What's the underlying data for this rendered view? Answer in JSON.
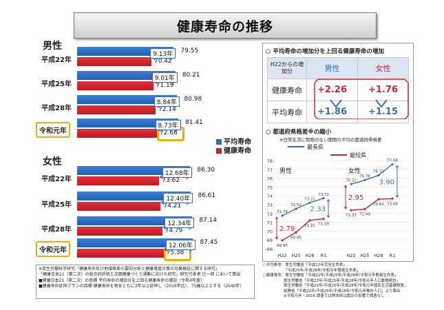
{
  "title": "健康寿命の推移",
  "left": {
    "male_label": "男性",
    "female_label": "女性",
    "years": [
      "平成22年",
      "平成25年",
      "平成28年",
      "令和元年"
    ],
    "legend": {
      "blue": "平均寿命",
      "red": "健康寿命"
    }
  },
  "chart_data": [
    {
      "type": "bar",
      "group": "男性",
      "categories": [
        "平成22年",
        "平成25年",
        "平成28年",
        "令和元年"
      ],
      "series": [
        {
          "name": "平均寿命",
          "values": [
            79.55,
            80.21,
            80.98,
            81.41
          ]
        },
        {
          "name": "健康寿命",
          "values": [
            70.42,
            71.19,
            72.14,
            72.68
          ]
        }
      ],
      "differences": [
        "9.13年",
        "9.01年",
        "8.84年",
        "8.73年"
      ],
      "labels_life": [
        "79.55",
        "80.21",
        "80.98",
        "81.41"
      ],
      "labels_health": [
        "70.42",
        "71.19",
        "72.14",
        "72.68"
      ]
    },
    {
      "type": "bar",
      "group": "女性",
      "categories": [
        "平成22年",
        "平成25年",
        "平成28年",
        "令和元年"
      ],
      "series": [
        {
          "name": "平均寿命",
          "values": [
            86.3,
            86.61,
            87.14,
            87.45
          ]
        },
        {
          "name": "健康寿命",
          "values": [
            73.62,
            74.21,
            74.79,
            75.38
          ]
        }
      ],
      "differences": [
        "12.68年",
        "12.40年",
        "12.34年",
        "12.06年"
      ],
      "labels_life": [
        "86.30",
        "86.61",
        "87.14",
        "87.45"
      ],
      "labels_health": [
        "73.62",
        "74.21",
        "74.79",
        "75.38"
      ]
    },
    {
      "type": "table",
      "title": "○ 平均寿命の増加分を上回る健康寿命の増加",
      "corner": "H22からの増加分",
      "columns": [
        "男性",
        "女性"
      ],
      "rows": [
        {
          "label": "健康寿命",
          "values": [
            "+2.26",
            "+1.76"
          ]
        },
        {
          "label": "平均寿命",
          "values": [
            "+1.86",
            "+1.15"
          ]
        }
      ]
    },
    {
      "type": "line",
      "title": "○ 都道府県格差※の縮小",
      "subtitle": "※日常生活に制限のない期間の平均の都道府県格差",
      "legend": [
        "最長県",
        "最短県"
      ],
      "ylim": [
        68,
        78
      ],
      "yticks": [
        "68",
        "69",
        "70",
        "71",
        "72",
        "73",
        "74",
        "75",
        "76",
        "77",
        "78"
      ],
      "panels": [
        {
          "name": "男性",
          "x": [
            "H22",
            "H25",
            "H28",
            "R1"
          ],
          "series": [
            {
              "name": "最長県",
              "values": [
                71.74,
                72.52,
                73.21,
                73.72
              ]
            },
            {
              "name": "最短県",
              "values": [
                68.95,
                69.85,
                71.21,
                71.39
              ]
            }
          ],
          "gaps": [
            "2.79",
            "2.33"
          ]
        },
        {
          "name": "女性",
          "x": [
            "H22",
            "H25",
            "H28",
            "R1"
          ],
          "series": [
            {
              "name": "最長県",
              "values": [
                75.32,
                75.78,
                76.32,
                77.58
              ]
            },
            {
              "name": "最短県",
              "values": [
                72.37,
                72.49,
                73.62,
                73.68
              ]
            }
          ],
          "gaps": [
            "2.95",
            "3.90"
          ]
        }
      ]
    }
  ],
  "footnote": [
    "※厚生労働科学研究「健康寿命及び地域格差の要因分析と健康増進対策の効果検証に関する研究」",
    "「健康日本21（第二次）の総合的評価と次期健康づくり運動に向けた研究」研究代表者 辻一郎 において算出",
    "■健康日本21（第二次）の目標 平均寿命の増加分を上回る健康寿命の増加（令和4年度）",
    "■健康寿命延伸プランの目標 健康寿命を男女ともに3年以上延伸し（2016年比）、75歳以上とする（2040年）"
  ],
  "sources": [
    "○平均寿命：厚生労働省「平成22年完全生命表」",
    "「平成25年/平成28年/令和元年簡易生命表」",
    "○健康寿命：厚生労働省「平成22年/平成25年/平成28年/令和元年簡易生命表」",
    "厚生労働省「平成22年/平成25年/平成28年/令和元年人口動態統計」",
    "厚生労働省「平成22年/平成25年/平成28年/令和元年国民生活基礎調査」",
    "総務省「平成22年/平成25年/平成28年/令和元年推計人口」より算出",
    "※令和元年・2016 調査では熊本県は震災の影響で調査なし"
  ]
}
